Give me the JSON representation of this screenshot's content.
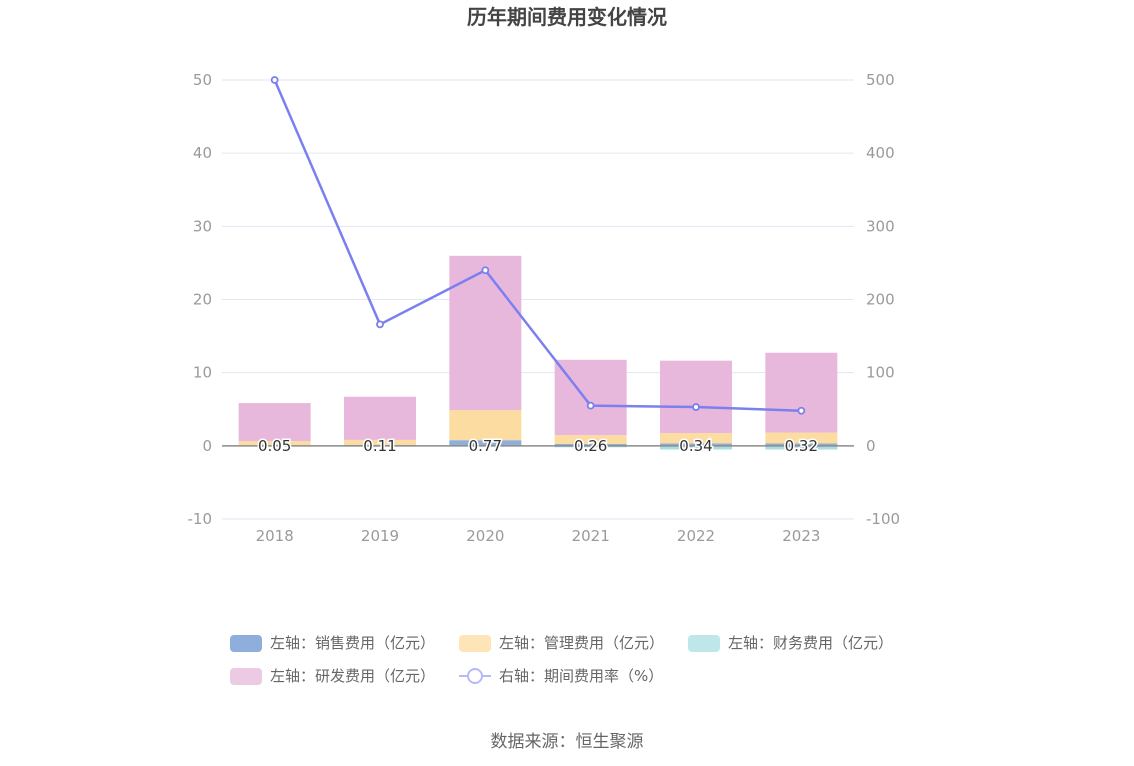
{
  "chart_data": {
    "type": "bar",
    "title": "历年期间费用变化情况",
    "categories": [
      "2018",
      "2019",
      "2020",
      "2021",
      "2022",
      "2023"
    ],
    "left_axis": {
      "ylim": [
        -10,
        50
      ],
      "ticks": [
        "-10",
        "0",
        "10",
        "20",
        "30",
        "40",
        "50"
      ]
    },
    "right_axis": {
      "ylim": [
        -100,
        500
      ],
      "ticks": [
        "-100",
        "0",
        "100",
        "200",
        "300",
        "400",
        "500"
      ]
    },
    "series": [
      {
        "name": "左轴：销售费用（亿元）",
        "type": "bar",
        "axis": "left",
        "stack": "total",
        "values": [
          0.05,
          0.11,
          0.77,
          0.26,
          0.34,
          0.32
        ],
        "color": "#8eaedc"
      },
      {
        "name": "左轴：管理费用（亿元）",
        "type": "bar",
        "axis": "left",
        "stack": "total",
        "values": [
          0.6,
          0.7,
          4.1,
          1.2,
          1.4,
          1.5
        ],
        "color": "#fcdca0"
      },
      {
        "name": "左轴：财务费用（亿元）",
        "type": "bar",
        "axis": "left",
        "stack": "total",
        "values": [
          -0.1,
          -0.1,
          -0.1,
          -0.2,
          -0.5,
          -0.5
        ],
        "color": "#a9dde2"
      },
      {
        "name": "左轴：研发费用（亿元）",
        "type": "bar",
        "axis": "left",
        "stack": "total",
        "values": [
          5.2,
          5.9,
          21.1,
          10.3,
          9.9,
          10.9
        ],
        "color": "#e7b8db"
      },
      {
        "name": "右轴：期间费用率（%）",
        "type": "line",
        "axis": "right",
        "values": [
          500,
          166,
          240,
          55,
          53,
          48
        ],
        "color": "#7b7ff0"
      }
    ],
    "data_labels": [
      "0.05",
      "0.11",
      "0.77",
      "0.26",
      "0.34",
      "0.32"
    ],
    "grid": true,
    "legend_position": "bottom"
  },
  "source_text": "数据来源：恒生聚源"
}
